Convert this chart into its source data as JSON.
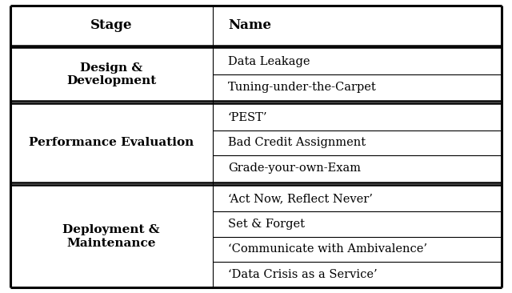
{
  "col1_header": "Stage",
  "col2_header": "Name",
  "sections": [
    {
      "stage": "Design &\nDevelopment",
      "names": [
        "Data Leakage",
        "Tuning-under-the-Carpet"
      ]
    },
    {
      "stage": "Performance Evaluation",
      "names": [
        "‘PEST’",
        "Bad Credit Assignment",
        "Grade-your-own-Exam"
      ]
    },
    {
      "stage": "Deployment &\nMaintenance",
      "names": [
        "‘Act Now, Reflect Never’",
        "Set & Forget",
        "‘Communicate with Ambivalence’",
        "‘Data Crisis as a Service’"
      ]
    }
  ],
  "bg_color": "#ffffff",
  "text_color": "#000000",
  "line_color": "#000000",
  "header_fontsize": 12,
  "stage_fontsize": 11,
  "name_fontsize": 10.5,
  "col_split": 0.415
}
